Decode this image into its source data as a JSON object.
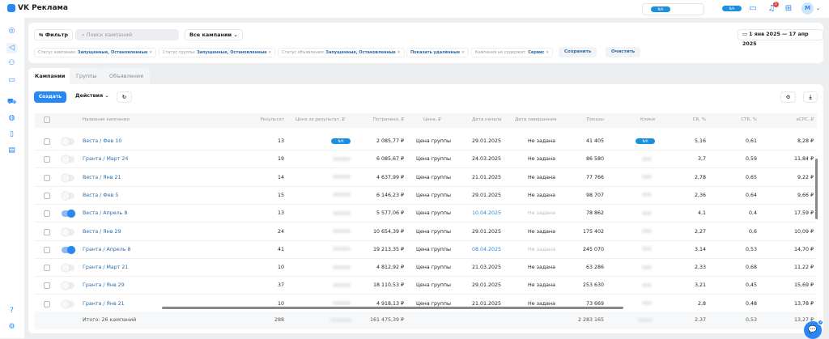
{
  "header": {
    "brand": "VK Реклама",
    "badge": "N/A",
    "notifications": "1",
    "avatar": "M"
  },
  "filters": {
    "filter_label": "Фильтр",
    "search_placeholder": "Поиск кампаний",
    "scope": "Все кампании",
    "date_range": "1 янв 2025 — 17 апр 2025",
    "chips": [
      {
        "label": "Статус кампании:",
        "value": "Запущенные, Остановленные"
      },
      {
        "label": "Статус группы:",
        "value": "Запущенные, Остановленные"
      },
      {
        "label": "Статус объявления:",
        "value": "Запущенные, Остановленные"
      },
      {
        "label": "",
        "value": "Показать удалённые"
      },
      {
        "label": "Кампания не содержит:",
        "value": "Сервис"
      }
    ],
    "save": "Сохранить",
    "clear": "Очистить"
  },
  "tabs": [
    "Кампании",
    "Группы",
    "Объявления"
  ],
  "toolbar": {
    "create": "Создать",
    "actions": "Действия"
  },
  "columns": [
    "Название кампании",
    "Результат",
    "Цена за результат, ₽",
    "Потрачено, ₽",
    "Цена, ₽",
    "Дата начала",
    "Дата завершения",
    "Показы",
    "Клики",
    "CR, %",
    "CTR, %",
    "eCPC, ₽"
  ],
  "rows": [
    {
      "name": "Веста / Фев 10",
      "on": false,
      "result": "13",
      "spent": "2 085,77 ₽",
      "price": "Цена группы",
      "start": "29.01.2025",
      "end": "Не задана",
      "shows": "41 405",
      "cr": "5,16",
      "ctr": "0,61",
      "ecpc": "8,28 ₽"
    },
    {
      "name": "Гранта / Март 24",
      "on": false,
      "result": "19",
      "spent": "6 085,67 ₽",
      "price": "Цена группы",
      "start": "24.03.2025",
      "end": "Не задана",
      "shows": "86 580",
      "cr": "3,7",
      "ctr": "0,59",
      "ecpc": "11,84 ₽"
    },
    {
      "name": "Веста / Янв 21",
      "on": false,
      "result": "14",
      "spent": "4 637,99 ₽",
      "price": "Цена группы",
      "start": "21.01.2025",
      "end": "Не задана",
      "shows": "77 766",
      "cr": "2,78",
      "ctr": "0,65",
      "ecpc": "9,22 ₽"
    },
    {
      "name": "Веста / Фев 5",
      "on": false,
      "result": "15",
      "spent": "6 146,23 ₽",
      "price": "Цена группы",
      "start": "29.01.2025",
      "end": "Не задана",
      "shows": "98 707",
      "cr": "2,36",
      "ctr": "0,64",
      "ecpc": "9,66 ₽"
    },
    {
      "name": "Веста / Апрель 8",
      "on": true,
      "result": "13",
      "spent": "5 577,06 ₽",
      "price": "Цена группы",
      "start": "10.04.2025",
      "end": "Не задана",
      "shows": "78 862",
      "cr": "4,1",
      "ctr": "0,4",
      "ecpc": "17,59 ₽"
    },
    {
      "name": "Веста / Янв 29",
      "on": false,
      "result": "24",
      "spent": "10 654,39 ₽",
      "price": "Цена группы",
      "start": "29.01.2025",
      "end": "Не задана",
      "shows": "175 402",
      "cr": "2,27",
      "ctr": "0,6",
      "ecpc": "10,09 ₽"
    },
    {
      "name": "Гранта / Апрель 8",
      "on": true,
      "result": "41",
      "spent": "19 213,35 ₽",
      "price": "Цена группы",
      "start": "08.04.2025",
      "end": "Не задана",
      "shows": "245 070",
      "cr": "3,14",
      "ctr": "0,53",
      "ecpc": "14,70 ₽"
    },
    {
      "name": "Гранта / Март 21",
      "on": false,
      "result": "10",
      "spent": "4 812,92 ₽",
      "price": "Цена группы",
      "start": "21.03.2025",
      "end": "Не задана",
      "shows": "63 286",
      "cr": "2,33",
      "ctr": "0,68",
      "ecpc": "11,22 ₽"
    },
    {
      "name": "Гранта / Янв 29",
      "on": false,
      "result": "37",
      "spent": "18 110,53 ₽",
      "price": "Цена группы",
      "start": "29.01.2025",
      "end": "Не задана",
      "shows": "253 630",
      "cr": "3,21",
      "ctr": "0,45",
      "ecpc": "15,69 ₽"
    },
    {
      "name": "Гранта / Янв 21",
      "on": false,
      "result": "10",
      "spent": "4 918,13 ₽",
      "price": "Цена группы",
      "start": "21.01.2025",
      "end": "Не задана",
      "shows": "73 669",
      "cr": "2,8",
      "ctr": "0,48",
      "ecpc": "13,78 ₽"
    }
  ],
  "totals": {
    "label": "Итого: 26 кампаний",
    "result": "288",
    "spent": "161 475,39 ₽",
    "shows": "2 283 165",
    "cr": "2,37",
    "ctr": "0,53",
    "ecpc": "13,27 ₽"
  },
  "chat_badge": "3"
}
